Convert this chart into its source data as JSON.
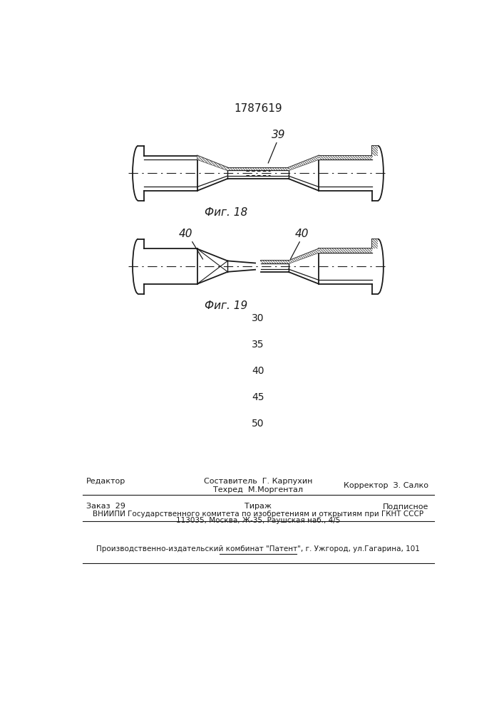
{
  "title": "1787619",
  "fig18_label": "Фиг. 18",
  "fig19_label": "Фиг. 19",
  "label_39": "39",
  "label_40a": "40",
  "label_40b": "40",
  "page_numbers": [
    "30",
    "35",
    "40",
    "45",
    "50"
  ],
  "footer_line1_left": "Редактор",
  "footer_line1_center": "Составитель  Г. Карпухин",
  "footer_line1_right": "Корректор  З. Салко",
  "footer_line2_center": "Техред  М.Моргентал",
  "footer_block1_left": "Заказ  29",
  "footer_block1_center": "Тираж",
  "footer_block1_right": "Подписное",
  "footer_block2": "ВНИИПИ Государственного комитета по изобретениям и открытиям при ГКНТ СССР",
  "footer_block3": "113035, Москва, Ж-35, Раушская наб., 4/5",
  "footer_last": "Производственно-издательский комбинат \"Патент\", г. Ужгород, ул.Гагарина, 101",
  "bg_color": "#ffffff",
  "line_color": "#1a1a1a",
  "hatch_color": "#555555"
}
